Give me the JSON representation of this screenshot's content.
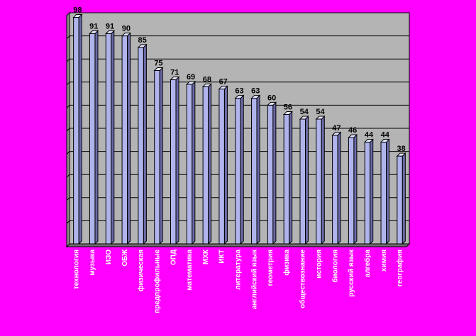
{
  "colors": {
    "background": "#ff00ff",
    "plot_area": "#b4b4b4",
    "bar": "#b0b4ec",
    "bar_side": "#6a6aa8",
    "bar_top": "#e4e6ff",
    "tick_label": "#ffffff",
    "value_label": "#000000"
  },
  "chart_data": {
    "type": "bar",
    "categories": [
      "технология",
      "музыка",
      "ИЗО",
      "ОБЖ",
      "физическая",
      "предпрофильные",
      "ОПД",
      "математика",
      "МХК",
      "ИКТ",
      "литература",
      "английский язык",
      "геометрия",
      "физика",
      "обществознание",
      "история",
      "биология",
      "русский язык",
      "алгебра",
      "химия",
      "география"
    ],
    "values": [
      98,
      91,
      91,
      90,
      85,
      75,
      71,
      69,
      68,
      67,
      63,
      63,
      60,
      56,
      54,
      54,
      47,
      46,
      44,
      44,
      38
    ],
    "title": "",
    "xlabel": "",
    "ylabel": "",
    "ylim": [
      0,
      100
    ],
    "grid": true,
    "legend": "none",
    "bar_style": "3d"
  }
}
